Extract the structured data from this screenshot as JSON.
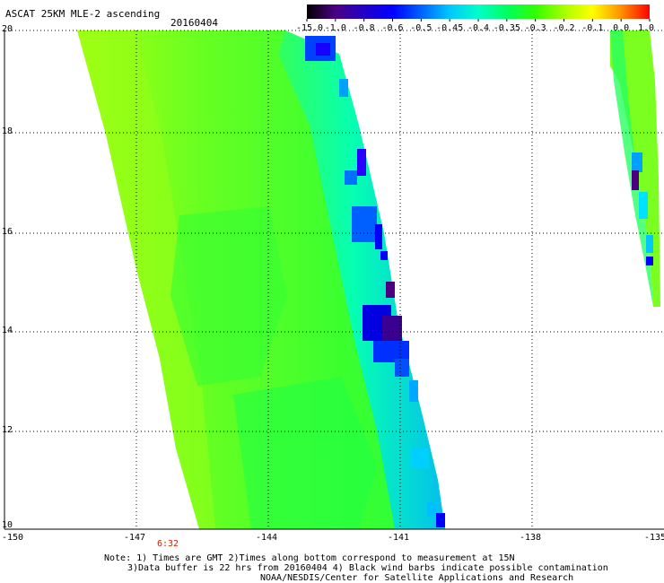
{
  "header": {
    "product": "ASCAT 25KM MLE-2 ascending",
    "date": "20160404"
  },
  "colorbar": {
    "labels": [
      "-15.0",
      "-1.0",
      "-0.8",
      "-0.6",
      "-0.5",
      "-0.45",
      "-0.4",
      "-0.35",
      "-0.3",
      "-0.2",
      "-0.1",
      "0.0",
      "1.0"
    ],
    "colors": [
      "#000000",
      "#4b0082",
      "#2200c8",
      "#0000ff",
      "#0060ff",
      "#00c8ff",
      "#00ffc8",
      "#00ff60",
      "#30ff00",
      "#a8ff00",
      "#ffff00",
      "#ff9000",
      "#ff0000"
    ]
  },
  "axes": {
    "lat_labels": [
      "20",
      "18",
      "16",
      "14",
      "12",
      "10"
    ],
    "lon_labels": [
      "-150",
      "-147",
      "-144",
      "-141",
      "-138",
      "-135"
    ],
    "grid": true,
    "lon_range": [
      -150,
      -135
    ],
    "lat_range": [
      10,
      20
    ]
  },
  "time_marker": "6:32",
  "notes": {
    "line1": "Note: 1) Times are GMT 2)Times along bottom correspond to measurement at 15N",
    "line2": "3)Data buffer is 22 hrs from 20160404 4) Black wind barbs indicate possible contamination",
    "line3": "NOAA/NESDIS/Center for Satellite Applications and Research"
  }
}
